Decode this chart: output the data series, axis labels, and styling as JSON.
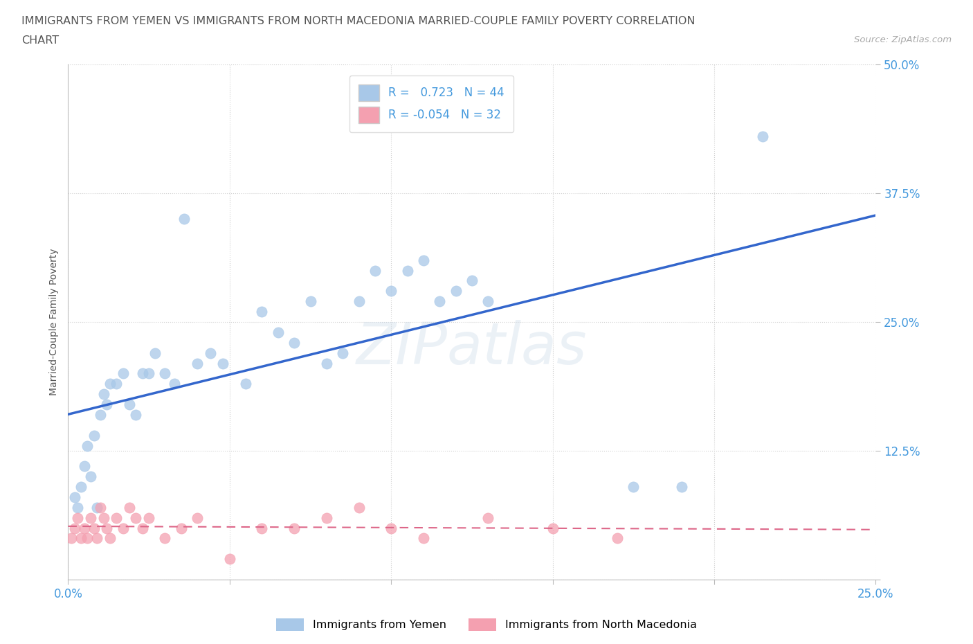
{
  "title_line1": "IMMIGRANTS FROM YEMEN VS IMMIGRANTS FROM NORTH MACEDONIA MARRIED-COUPLE FAMILY POVERTY CORRELATION",
  "title_line2": "CHART",
  "source": "Source: ZipAtlas.com",
  "ylabel": "Married-Couple Family Poverty",
  "xlim": [
    0.0,
    0.25
  ],
  "ylim": [
    0.0,
    0.5
  ],
  "xticks": [
    0.0,
    0.05,
    0.1,
    0.15,
    0.2,
    0.25
  ],
  "yticks": [
    0.0,
    0.125,
    0.25,
    0.375,
    0.5
  ],
  "yemen_color": "#a8c8e8",
  "macedonia_color": "#f4a0b0",
  "yemen_R": 0.723,
  "yemen_N": 44,
  "macedonia_R": -0.054,
  "macedonia_N": 32,
  "watermark": "ZIPatlas",
  "legend_label1": "Immigrants from Yemen",
  "legend_label2": "Immigrants from North Macedonia",
  "yemen_x": [
    0.002,
    0.003,
    0.004,
    0.005,
    0.006,
    0.007,
    0.008,
    0.009,
    0.01,
    0.011,
    0.012,
    0.013,
    0.015,
    0.017,
    0.019,
    0.021,
    0.023,
    0.025,
    0.027,
    0.03,
    0.033,
    0.036,
    0.04,
    0.044,
    0.048,
    0.055,
    0.06,
    0.065,
    0.07,
    0.075,
    0.08,
    0.085,
    0.09,
    0.095,
    0.1,
    0.105,
    0.11,
    0.115,
    0.12,
    0.125,
    0.13,
    0.175,
    0.19,
    0.215
  ],
  "yemen_y": [
    0.08,
    0.07,
    0.09,
    0.11,
    0.13,
    0.1,
    0.14,
    0.07,
    0.16,
    0.18,
    0.17,
    0.19,
    0.19,
    0.2,
    0.17,
    0.16,
    0.2,
    0.2,
    0.22,
    0.2,
    0.19,
    0.35,
    0.21,
    0.22,
    0.21,
    0.19,
    0.26,
    0.24,
    0.23,
    0.27,
    0.21,
    0.22,
    0.27,
    0.3,
    0.28,
    0.3,
    0.31,
    0.27,
    0.28,
    0.29,
    0.27,
    0.09,
    0.09,
    0.43
  ],
  "macedonia_x": [
    0.001,
    0.002,
    0.003,
    0.004,
    0.005,
    0.006,
    0.007,
    0.008,
    0.009,
    0.01,
    0.011,
    0.012,
    0.013,
    0.015,
    0.017,
    0.019,
    0.021,
    0.023,
    0.025,
    0.03,
    0.035,
    0.04,
    0.05,
    0.06,
    0.07,
    0.08,
    0.09,
    0.1,
    0.11,
    0.13,
    0.15,
    0.17
  ],
  "macedonia_y": [
    0.04,
    0.05,
    0.06,
    0.04,
    0.05,
    0.04,
    0.06,
    0.05,
    0.04,
    0.07,
    0.06,
    0.05,
    0.04,
    0.06,
    0.05,
    0.07,
    0.06,
    0.05,
    0.06,
    0.04,
    0.05,
    0.06,
    0.02,
    0.05,
    0.05,
    0.06,
    0.07,
    0.05,
    0.04,
    0.06,
    0.05,
    0.04
  ],
  "grid_color": "#cccccc",
  "title_color": "#555555",
  "axis_label_color": "#555555",
  "tick_label_color": "#4499dd",
  "trend_blue_color": "#3366cc",
  "trend_pink_color": "#dd6688"
}
